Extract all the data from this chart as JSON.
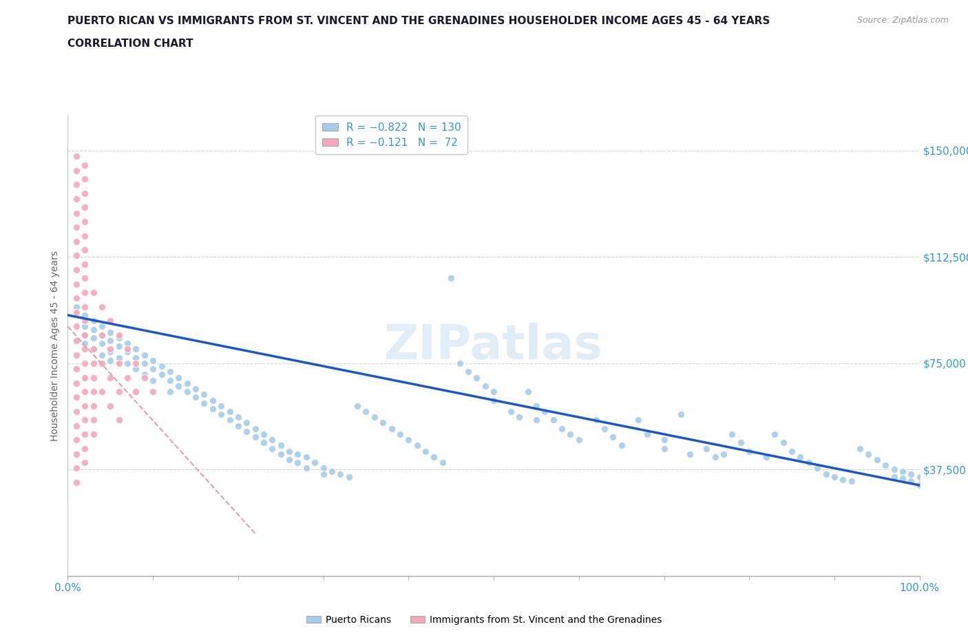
{
  "title_line1": "PUERTO RICAN VS IMMIGRANTS FROM ST. VINCENT AND THE GRENADINES HOUSEHOLDER INCOME AGES 45 - 64 YEARS",
  "title_line2": "CORRELATION CHART",
  "source_text": "Source: ZipAtlas.com",
  "ylabel": "Householder Income Ages 45 - 64 years",
  "xlim": [
    0,
    1.0
  ],
  "ylim": [
    0,
    162500
  ],
  "ytick_values": [
    37500,
    75000,
    112500,
    150000
  ],
  "ytick_labels": [
    "$37,500",
    "$75,000",
    "$112,500",
    "$150,000"
  ],
  "grid_color": "#d0d8e8",
  "background_color": "#ffffff",
  "blue_color": "#a8cce8",
  "pink_color": "#f4a8bb",
  "blue_line_color": "#1a56cc",
  "pink_line_color": "#e0a0b0",
  "blue_scatter": [
    [
      0.01,
      95000
    ],
    [
      0.02,
      92000
    ],
    [
      0.02,
      88000
    ],
    [
      0.02,
      85000
    ],
    [
      0.02,
      82000
    ],
    [
      0.03,
      90000
    ],
    [
      0.03,
      87000
    ],
    [
      0.03,
      84000
    ],
    [
      0.03,
      80000
    ],
    [
      0.04,
      88000
    ],
    [
      0.04,
      85000
    ],
    [
      0.04,
      82000
    ],
    [
      0.04,
      78000
    ],
    [
      0.05,
      86000
    ],
    [
      0.05,
      83000
    ],
    [
      0.05,
      79000
    ],
    [
      0.05,
      76000
    ],
    [
      0.06,
      84000
    ],
    [
      0.06,
      81000
    ],
    [
      0.06,
      77000
    ],
    [
      0.07,
      82000
    ],
    [
      0.07,
      79000
    ],
    [
      0.07,
      75000
    ],
    [
      0.08,
      80000
    ],
    [
      0.08,
      77000
    ],
    [
      0.08,
      73000
    ],
    [
      0.09,
      78000
    ],
    [
      0.09,
      75000
    ],
    [
      0.09,
      71000
    ],
    [
      0.1,
      76000
    ],
    [
      0.1,
      73000
    ],
    [
      0.1,
      69000
    ],
    [
      0.11,
      74000
    ],
    [
      0.11,
      71000
    ],
    [
      0.12,
      72000
    ],
    [
      0.12,
      69000
    ],
    [
      0.12,
      65000
    ],
    [
      0.13,
      70000
    ],
    [
      0.13,
      67000
    ],
    [
      0.14,
      68000
    ],
    [
      0.14,
      65000
    ],
    [
      0.15,
      66000
    ],
    [
      0.15,
      63000
    ],
    [
      0.16,
      64000
    ],
    [
      0.16,
      61000
    ],
    [
      0.17,
      62000
    ],
    [
      0.17,
      59000
    ],
    [
      0.18,
      60000
    ],
    [
      0.18,
      57000
    ],
    [
      0.19,
      58000
    ],
    [
      0.19,
      55000
    ],
    [
      0.2,
      56000
    ],
    [
      0.2,
      53000
    ],
    [
      0.21,
      54000
    ],
    [
      0.21,
      51000
    ],
    [
      0.22,
      52000
    ],
    [
      0.22,
      49000
    ],
    [
      0.23,
      50000
    ],
    [
      0.23,
      47000
    ],
    [
      0.24,
      48000
    ],
    [
      0.24,
      45000
    ],
    [
      0.25,
      46000
    ],
    [
      0.25,
      43000
    ],
    [
      0.26,
      44000
    ],
    [
      0.26,
      41000
    ],
    [
      0.27,
      43000
    ],
    [
      0.27,
      40000
    ],
    [
      0.28,
      42000
    ],
    [
      0.28,
      38000
    ],
    [
      0.29,
      40000
    ],
    [
      0.3,
      38000
    ],
    [
      0.3,
      36000
    ],
    [
      0.31,
      37000
    ],
    [
      0.32,
      36000
    ],
    [
      0.33,
      35000
    ],
    [
      0.34,
      60000
    ],
    [
      0.35,
      58000
    ],
    [
      0.36,
      56000
    ],
    [
      0.37,
      54000
    ],
    [
      0.38,
      52000
    ],
    [
      0.39,
      50000
    ],
    [
      0.4,
      48000
    ],
    [
      0.41,
      46000
    ],
    [
      0.42,
      44000
    ],
    [
      0.43,
      42000
    ],
    [
      0.44,
      40000
    ],
    [
      0.45,
      105000
    ],
    [
      0.46,
      75000
    ],
    [
      0.47,
      72000
    ],
    [
      0.48,
      70000
    ],
    [
      0.49,
      67000
    ],
    [
      0.5,
      65000
    ],
    [
      0.5,
      62000
    ],
    [
      0.52,
      58000
    ],
    [
      0.53,
      56000
    ],
    [
      0.54,
      65000
    ],
    [
      0.55,
      60000
    ],
    [
      0.55,
      55000
    ],
    [
      0.56,
      58000
    ],
    [
      0.57,
      55000
    ],
    [
      0.58,
      52000
    ],
    [
      0.59,
      50000
    ],
    [
      0.6,
      48000
    ],
    [
      0.62,
      55000
    ],
    [
      0.63,
      52000
    ],
    [
      0.64,
      49000
    ],
    [
      0.65,
      46000
    ],
    [
      0.67,
      55000
    ],
    [
      0.68,
      50000
    ],
    [
      0.7,
      48000
    ],
    [
      0.7,
      45000
    ],
    [
      0.72,
      57000
    ],
    [
      0.73,
      43000
    ],
    [
      0.75,
      45000
    ],
    [
      0.76,
      42000
    ],
    [
      0.77,
      43000
    ],
    [
      0.78,
      50000
    ],
    [
      0.79,
      47000
    ],
    [
      0.8,
      44000
    ],
    [
      0.82,
      42000
    ],
    [
      0.83,
      50000
    ],
    [
      0.84,
      47000
    ],
    [
      0.85,
      44000
    ],
    [
      0.86,
      42000
    ],
    [
      0.87,
      40000
    ],
    [
      0.88,
      38000
    ],
    [
      0.89,
      36000
    ],
    [
      0.9,
      35000
    ],
    [
      0.91,
      34000
    ],
    [
      0.92,
      33500
    ],
    [
      0.93,
      45000
    ],
    [
      0.94,
      43000
    ],
    [
      0.95,
      41000
    ],
    [
      0.96,
      39000
    ],
    [
      0.97,
      37500
    ],
    [
      0.97,
      35000
    ],
    [
      0.98,
      37000
    ],
    [
      0.98,
      34500
    ],
    [
      0.99,
      36000
    ],
    [
      0.99,
      33500
    ],
    [
      1.0,
      35000
    ],
    [
      1.0,
      32500
    ],
    [
      1.0,
      32000
    ]
  ],
  "pink_scatter": [
    [
      0.01,
      148000
    ],
    [
      0.01,
      143000
    ],
    [
      0.01,
      138000
    ],
    [
      0.01,
      133000
    ],
    [
      0.01,
      128000
    ],
    [
      0.01,
      123000
    ],
    [
      0.01,
      118000
    ],
    [
      0.01,
      113000
    ],
    [
      0.01,
      108000
    ],
    [
      0.01,
      103000
    ],
    [
      0.01,
      98000
    ],
    [
      0.01,
      93000
    ],
    [
      0.01,
      88000
    ],
    [
      0.01,
      83000
    ],
    [
      0.01,
      78000
    ],
    [
      0.01,
      73000
    ],
    [
      0.01,
      68000
    ],
    [
      0.01,
      63000
    ],
    [
      0.01,
      58000
    ],
    [
      0.01,
      53000
    ],
    [
      0.01,
      48000
    ],
    [
      0.01,
      43000
    ],
    [
      0.01,
      38000
    ],
    [
      0.01,
      33000
    ],
    [
      0.02,
      145000
    ],
    [
      0.02,
      140000
    ],
    [
      0.02,
      135000
    ],
    [
      0.02,
      130000
    ],
    [
      0.02,
      125000
    ],
    [
      0.02,
      120000
    ],
    [
      0.02,
      115000
    ],
    [
      0.02,
      110000
    ],
    [
      0.02,
      105000
    ],
    [
      0.02,
      100000
    ],
    [
      0.02,
      95000
    ],
    [
      0.02,
      90000
    ],
    [
      0.02,
      85000
    ],
    [
      0.02,
      80000
    ],
    [
      0.02,
      75000
    ],
    [
      0.02,
      70000
    ],
    [
      0.02,
      65000
    ],
    [
      0.02,
      60000
    ],
    [
      0.02,
      55000
    ],
    [
      0.02,
      50000
    ],
    [
      0.02,
      45000
    ],
    [
      0.02,
      40000
    ],
    [
      0.03,
      100000
    ],
    [
      0.03,
      80000
    ],
    [
      0.03,
      75000
    ],
    [
      0.03,
      70000
    ],
    [
      0.03,
      65000
    ],
    [
      0.03,
      60000
    ],
    [
      0.03,
      55000
    ],
    [
      0.03,
      50000
    ],
    [
      0.04,
      95000
    ],
    [
      0.04,
      85000
    ],
    [
      0.04,
      75000
    ],
    [
      0.04,
      65000
    ],
    [
      0.05,
      90000
    ],
    [
      0.05,
      80000
    ],
    [
      0.05,
      70000
    ],
    [
      0.05,
      60000
    ],
    [
      0.06,
      85000
    ],
    [
      0.06,
      75000
    ],
    [
      0.06,
      65000
    ],
    [
      0.06,
      55000
    ],
    [
      0.07,
      80000
    ],
    [
      0.07,
      70000
    ],
    [
      0.08,
      75000
    ],
    [
      0.08,
      65000
    ],
    [
      0.09,
      70000
    ],
    [
      0.1,
      65000
    ]
  ],
  "blue_trendline_x": [
    0.0,
    1.0
  ],
  "blue_trendline_y": [
    92000,
    32000
  ],
  "pink_trendline_x": [
    0.0,
    0.22
  ],
  "pink_trendline_y": [
    88000,
    15000
  ]
}
